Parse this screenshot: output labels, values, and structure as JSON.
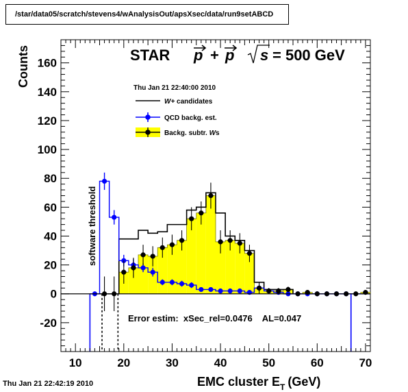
{
  "canvas": {
    "path_label": "/star/data05/scratch/stevens4/wAnalysisOut/apsXsec/data/run9setABCD",
    "timestamp_bottom": "Thu Jan 21 22:42:19 2010"
  },
  "chart_data": {
    "type": "histogram",
    "title_parts": {
      "experiment": "STAR",
      "beams": "p + p",
      "energy": "= 500 GeV"
    },
    "stats_timestamp": "Thu Jan 21 22:40:00 2010",
    "xlabel": "EMC cluster E",
    "xlabel_sub": "T",
    "xlabel_unit": "(GeV)",
    "ylabel": "Counts",
    "xlim": [
      7,
      71
    ],
    "ylim": [
      -40,
      176
    ],
    "x_ticks": [
      10,
      20,
      30,
      40,
      50,
      60,
      70
    ],
    "y_ticks": [
      -20,
      0,
      20,
      40,
      60,
      80,
      100,
      120,
      140,
      160
    ],
    "legend_position": "upper-middle",
    "legend": [
      {
        "label": "W+ candidates",
        "style": "line",
        "color": "#000000"
      },
      {
        "label": "QCD backg. est.",
        "style": "marker",
        "color": "#0000ff"
      },
      {
        "label": "Backg. subtr. Ws",
        "style": "fill",
        "color": "#ffff00"
      }
    ],
    "bin_width": 2,
    "bin_starts": [
      13,
      15,
      17,
      19,
      21,
      23,
      25,
      27,
      29,
      31,
      33,
      35,
      37,
      39,
      41,
      43,
      45,
      47,
      49,
      51,
      53,
      55,
      57,
      59,
      61,
      63,
      65,
      67,
      69
    ],
    "series": [
      {
        "name": "W+ candidates",
        "kind": "step",
        "color": "#000000",
        "values": [
          0,
          0,
          0,
          38,
          38,
          44,
          42,
          43,
          48,
          48,
          58,
          60,
          70,
          56,
          40,
          37,
          30,
          8,
          3,
          3,
          3,
          0,
          0,
          0,
          0,
          0,
          0,
          0,
          0
        ]
      },
      {
        "name": "QCD backg. est.",
        "kind": "points",
        "color": "#0000ff",
        "values": [
          0,
          78,
          53,
          23,
          20,
          18,
          15,
          8,
          8,
          7,
          6,
          3,
          3,
          2,
          2,
          2,
          1,
          4,
          2,
          1,
          0,
          0,
          0,
          0,
          0,
          0,
          0,
          0,
          0
        ],
        "errors": [
          0,
          6,
          5,
          4,
          4,
          3,
          3,
          2,
          2,
          2,
          2,
          1,
          1,
          1,
          1,
          1,
          1,
          2,
          1,
          1,
          1,
          1,
          1,
          1,
          1,
          1,
          1,
          0,
          0
        ]
      },
      {
        "name": "Backg. subtr. Ws",
        "kind": "filled-points",
        "color": "#000000",
        "fill": "#ffff00",
        "values": [
          0,
          0,
          0,
          15,
          18,
          27,
          26,
          32,
          34,
          37,
          52,
          56,
          68,
          36,
          37,
          35,
          28,
          4,
          2,
          2,
          3,
          0,
          1,
          0,
          0,
          0,
          0,
          0,
          1
        ],
        "errors": [
          0,
          12,
          12,
          8,
          7,
          7,
          7,
          7,
          7,
          7,
          8,
          8,
          9,
          8,
          7,
          7,
          6,
          4,
          2,
          2,
          2,
          1,
          1,
          1,
          1,
          1,
          1,
          1,
          1
        ]
      }
    ],
    "annotations": {
      "vertical_label": "software threshold",
      "threshold_lines_x": [
        15.5,
        18.8
      ],
      "error_text": "Error estim:  xSec_rel=0.0476    AL=0.047",
      "blue_outer_edges_x": [
        13,
        67
      ]
    }
  }
}
